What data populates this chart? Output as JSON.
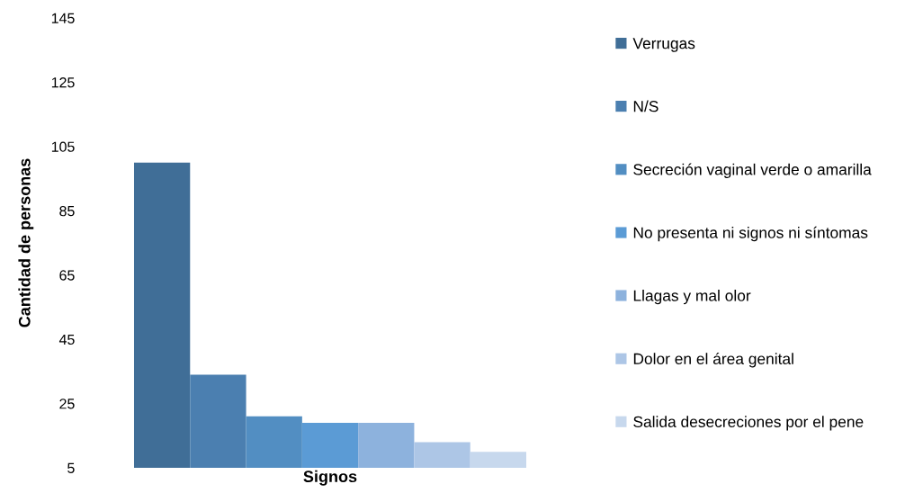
{
  "chart_data": {
    "type": "bar",
    "xlabel": "Signos",
    "ylabel": "Cantidad de personas",
    "categories": [
      null
    ],
    "series": [
      {
        "name": "Verrugas",
        "color": "#406e97",
        "values": [
          100
        ]
      },
      {
        "name": "N/S",
        "color": "#4b7fb0",
        "values": [
          34
        ]
      },
      {
        "name": "Secreción vaginal verde o amarilla",
        "color": "#528ec2",
        "values": [
          21
        ]
      },
      {
        "name": "No presenta ni signos ni síntomas",
        "color": "#5b9bd5",
        "values": [
          19
        ]
      },
      {
        "name": "Llagas y mal olor",
        "color": "#8db2dd",
        "values": [
          19
        ]
      },
      {
        "name": "Dolor en el área genital",
        "color": "#adc6e6",
        "values": [
          13
        ]
      },
      {
        "name": "Salida desecreciones por el pene",
        "color": "#c7d8ed",
        "values": [
          10
        ]
      }
    ],
    "ylim": [
      5,
      145
    ],
    "yticks": [
      5,
      25,
      45,
      65,
      85,
      105,
      125,
      145
    ],
    "tick_labels": "y",
    "legend": "right"
  }
}
